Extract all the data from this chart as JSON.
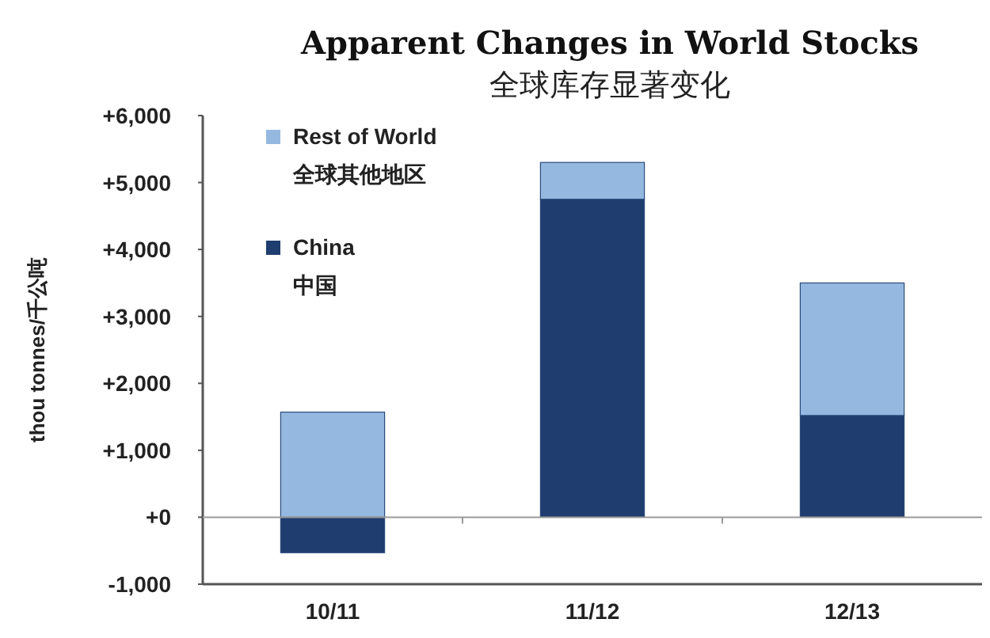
{
  "chart_data": {
    "type": "bar",
    "title": "Apparent Changes in World Stocks",
    "subtitle": "全球库存显著变化",
    "ylabel": "thou tonnes/千公吨",
    "stacked": true,
    "legend": "top left",
    "categories": [
      "10/11",
      "11/12",
      "12/13"
    ],
    "series": [
      {
        "name": "China\n中国",
        "color": "#1f3d6e",
        "values": [
          -530,
          4750,
          1520
        ]
      },
      {
        "name": "Rest of World\n全球其他地区",
        "color": "#95b8e0",
        "values": [
          1570,
          550,
          1980
        ]
      }
    ],
    "ylim": [
      -1000,
      6000
    ],
    "yticks": [
      {
        "value": -1000,
        "label": "-1,000"
      },
      {
        "value": 0,
        "label": "+0"
      },
      {
        "value": 1000,
        "label": "+1,000"
      },
      {
        "value": 2000,
        "label": "+2,000"
      },
      {
        "value": 3000,
        "label": "+3,000"
      },
      {
        "value": 4000,
        "label": "+4,000"
      },
      {
        "value": 5000,
        "label": "+5,000"
      },
      {
        "value": 6000,
        "label": "+6,000"
      }
    ]
  }
}
